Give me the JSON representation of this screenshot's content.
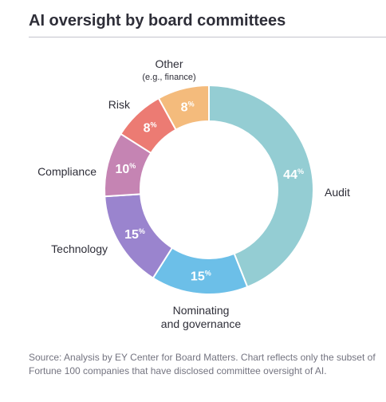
{
  "title": "AI oversight by board committees",
  "footnote": "Source: Analysis by EY Center for Board Matters. Chart reflects only the subset of Fortune 100 companies that have disclosed committee oversight of AI.",
  "colors": {
    "audit": "#94cdd3",
    "nominating": "#6cbfe8",
    "technology": "#9a84ce",
    "compliance": "#c584b3",
    "risk": "#ec7b73",
    "other": "#f4bb7c"
  },
  "chart_data": {
    "type": "pie",
    "donut": true,
    "unit": "%",
    "slices": [
      {
        "label": "Audit",
        "sublabel": "",
        "value": 44,
        "color": "#94cdd3"
      },
      {
        "label": "Nominating",
        "sublabel": "and governance",
        "value": 15,
        "color": "#6cbfe8"
      },
      {
        "label": "Technology",
        "sublabel": "",
        "value": 15,
        "color": "#9a84ce"
      },
      {
        "label": "Compliance",
        "sublabel": "",
        "value": 10,
        "color": "#c584b3"
      },
      {
        "label": "Risk",
        "sublabel": "",
        "value": 8,
        "color": "#ec7b73"
      },
      {
        "label": "Other",
        "sublabel": "(e.g., finance)",
        "value": 8,
        "color": "#f4bb7c"
      }
    ]
  }
}
